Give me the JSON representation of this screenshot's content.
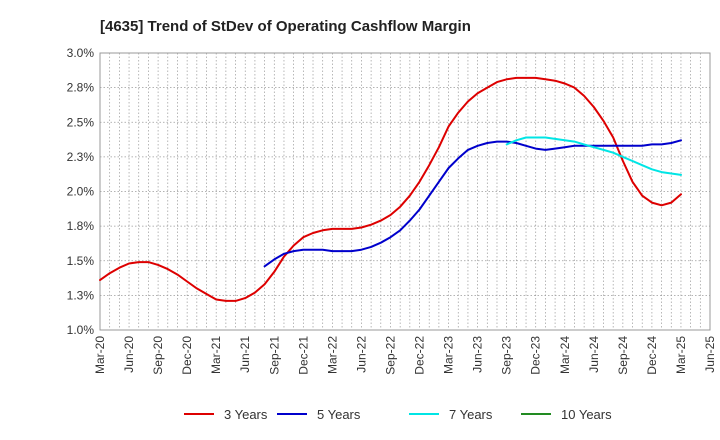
{
  "chart_data": {
    "type": "line",
    "title": "[4635]  Trend of StDev of Operating Cashflow Margin",
    "xlabel": "",
    "ylabel": "",
    "x_ticks": [
      "Mar-20",
      "Jun-20",
      "Sep-20",
      "Dec-20",
      "Mar-21",
      "Jun-21",
      "Sep-21",
      "Dec-21",
      "Mar-22",
      "Jun-22",
      "Sep-22",
      "Dec-22",
      "Mar-23",
      "Jun-23",
      "Sep-23",
      "Dec-23",
      "Mar-24",
      "Jun-24",
      "Sep-24",
      "Dec-24",
      "Mar-25",
      "Jun-25"
    ],
    "y_ticks": [
      "1.0%",
      "1.3%",
      "1.5%",
      "1.8%",
      "2.0%",
      "2.3%",
      "2.5%",
      "2.8%",
      "3.0%"
    ],
    "y_tick_values": [
      0.01,
      0.0125,
      0.015,
      0.0175,
      0.02,
      0.0225,
      0.025,
      0.0275,
      0.03
    ],
    "ylim": [
      0.01,
      0.03
    ],
    "grid": true,
    "legend_position": "bottom",
    "series": [
      {
        "name": "3 Years",
        "color": "#dd0000",
        "x": [
          "Mar-20",
          "Apr-20",
          "May-20",
          "Jun-20",
          "Jul-20",
          "Aug-20",
          "Sep-20",
          "Oct-20",
          "Nov-20",
          "Dec-20",
          "Jan-21",
          "Feb-21",
          "Mar-21",
          "Apr-21",
          "May-21",
          "Jun-21",
          "Jul-21",
          "Aug-21",
          "Sep-21",
          "Oct-21",
          "Nov-21",
          "Dec-21",
          "Jan-22",
          "Feb-22",
          "Mar-22",
          "Apr-22",
          "May-22",
          "Jun-22",
          "Jul-22",
          "Aug-22",
          "Sep-22",
          "Oct-22",
          "Nov-22",
          "Dec-22",
          "Jan-23",
          "Feb-23",
          "Mar-23",
          "Apr-23",
          "May-23",
          "Jun-23",
          "Jul-23",
          "Aug-23",
          "Sep-23",
          "Oct-23",
          "Nov-23",
          "Dec-23",
          "Jan-24",
          "Feb-24",
          "Mar-24",
          "Apr-24",
          "May-24",
          "Jun-24",
          "Jul-24",
          "Aug-24",
          "Sep-24",
          "Oct-24",
          "Nov-24",
          "Dec-24",
          "Jan-25",
          "Feb-25",
          "Mar-25"
        ],
        "values": [
          0.0136,
          0.0141,
          0.0145,
          0.0148,
          0.0149,
          0.0149,
          0.0147,
          0.0144,
          0.014,
          0.0135,
          0.013,
          0.0126,
          0.0122,
          0.0121,
          0.0121,
          0.0123,
          0.0127,
          0.0133,
          0.0142,
          0.0153,
          0.0161,
          0.0167,
          0.017,
          0.0172,
          0.0173,
          0.0173,
          0.0173,
          0.0174,
          0.0176,
          0.0179,
          0.0183,
          0.0189,
          0.0197,
          0.0207,
          0.0219,
          0.0232,
          0.0247,
          0.0257,
          0.0265,
          0.0271,
          0.0275,
          0.0279,
          0.0281,
          0.0282,
          0.0282,
          0.0282,
          0.0281,
          0.028,
          0.0278,
          0.0275,
          0.0269,
          0.0261,
          0.0251,
          0.0239,
          0.0222,
          0.0207,
          0.0197,
          0.0192,
          0.019,
          0.0192,
          0.0198
        ]
      },
      {
        "name": "5 Years",
        "color": "#0000cc",
        "x": [
          "Aug-21",
          "Sep-21",
          "Oct-21",
          "Nov-21",
          "Dec-21",
          "Jan-22",
          "Feb-22",
          "Mar-22",
          "Apr-22",
          "May-22",
          "Jun-22",
          "Jul-22",
          "Aug-22",
          "Sep-22",
          "Oct-22",
          "Nov-22",
          "Dec-22",
          "Jan-23",
          "Feb-23",
          "Mar-23",
          "Apr-23",
          "May-23",
          "Jun-23",
          "Jul-23",
          "Aug-23",
          "Sep-23",
          "Oct-23",
          "Nov-23",
          "Dec-23",
          "Jan-24",
          "Feb-24",
          "Mar-24",
          "Apr-24",
          "May-24",
          "Jun-24",
          "Jul-24",
          "Aug-24",
          "Sep-24",
          "Oct-24",
          "Nov-24",
          "Dec-24",
          "Jan-25",
          "Feb-25",
          "Mar-25"
        ],
        "values": [
          0.0146,
          0.0151,
          0.0155,
          0.0157,
          0.0158,
          0.0158,
          0.0158,
          0.0157,
          0.0157,
          0.0157,
          0.0158,
          0.016,
          0.0163,
          0.0167,
          0.0172,
          0.0179,
          0.0187,
          0.0197,
          0.0207,
          0.0217,
          0.0224,
          0.023,
          0.0233,
          0.0235,
          0.0236,
          0.0236,
          0.0235,
          0.0233,
          0.0231,
          0.023,
          0.0231,
          0.0232,
          0.0233,
          0.0233,
          0.0233,
          0.0233,
          0.0233,
          0.0233,
          0.0233,
          0.0233,
          0.0234,
          0.0234,
          0.0235,
          0.0237
        ]
      },
      {
        "name": "7 Years",
        "color": "#00e5e5",
        "x": [
          "Sep-23",
          "Oct-23",
          "Nov-23",
          "Dec-23",
          "Jan-24",
          "Feb-24",
          "Mar-24",
          "Apr-24",
          "May-24",
          "Jun-24",
          "Jul-24",
          "Aug-24",
          "Sep-24",
          "Oct-24",
          "Nov-24",
          "Dec-24",
          "Jan-25",
          "Feb-25",
          "Mar-25"
        ],
        "values": [
          0.0234,
          0.0237,
          0.0239,
          0.0239,
          0.0239,
          0.0238,
          0.0237,
          0.0236,
          0.0234,
          0.0232,
          0.023,
          0.0228,
          0.0225,
          0.0222,
          0.0219,
          0.0216,
          0.0214,
          0.0213,
          0.0212
        ]
      },
      {
        "name": "10 Years",
        "color": "#228b22",
        "x": [],
        "values": []
      }
    ]
  }
}
